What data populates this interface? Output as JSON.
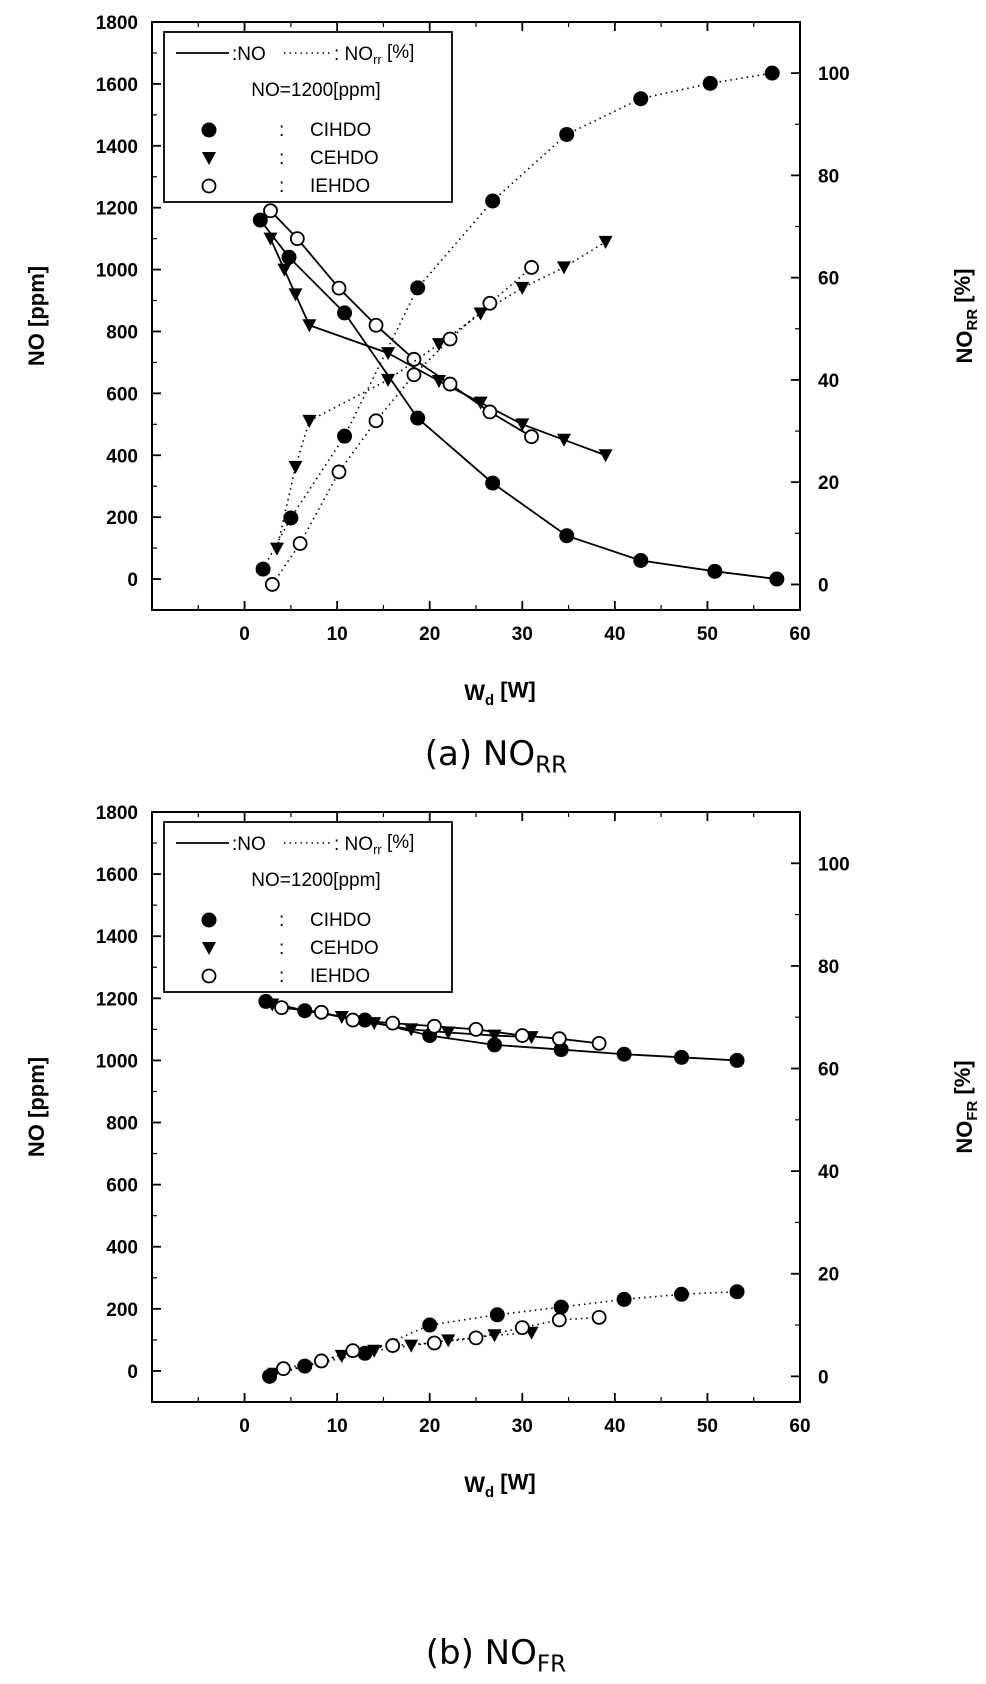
{
  "chart_data": [
    {
      "type": "line",
      "caption": "(a) NO",
      "caption_sub": "RR",
      "xlabel": "W",
      "xlabel_sub": "d",
      "xlabel_unit": "[W]",
      "ylabel": "NO [ppm]",
      "ylabel_right": "NO",
      "ylabel_right_sub": "RR",
      "ylabel_right_unit": "[%]",
      "xlim": [
        -10,
        60
      ],
      "ylim": [
        -100,
        1800
      ],
      "ylim_right": [
        -5,
        110
      ],
      "x_ticks": [
        0,
        10,
        20,
        30,
        40,
        50,
        60
      ],
      "y_ticks": [
        0,
        200,
        400,
        600,
        800,
        1000,
        1200,
        1400,
        1600,
        1800
      ],
      "y_right_ticks": [
        0,
        20,
        40,
        60,
        80,
        100
      ],
      "legend": {
        "line_solid": ":NO",
        "line_dotted": ": NO",
        "line_dotted_sub": "rr",
        "line_dotted_unit": "[%]",
        "condition": "NO=1200[ppm]",
        "entries": [
          {
            "marker": "filled-circle",
            "sep": ":",
            "label": "CIHDO"
          },
          {
            "marker": "filled-triangle",
            "sep": ":",
            "label": "CEHDO"
          },
          {
            "marker": "open-circle",
            "sep": ":",
            "label": "IEHDO"
          }
        ]
      },
      "series": [
        {
          "name": "CIHDO",
          "quantity": "NO",
          "axis": "left",
          "marker": "filled-circle",
          "x": [
            1.7,
            4.8,
            10.8,
            18.7,
            26.8,
            34.8,
            42.8,
            50.8,
            57.5
          ],
          "y": [
            1160,
            1040,
            860,
            520,
            310,
            140,
            60,
            25,
            0
          ]
        },
        {
          "name": "CEHDO",
          "quantity": "NO",
          "axis": "left",
          "marker": "filled-triangle",
          "x": [
            2.8,
            4.3,
            5.5,
            7.0,
            15.5,
            21.0,
            25.5,
            30.0,
            34.5,
            39.0
          ],
          "y": [
            1100,
            1000,
            920,
            820,
            730,
            640,
            570,
            500,
            450,
            400
          ]
        },
        {
          "name": "IEHDO",
          "quantity": "NO",
          "axis": "left",
          "marker": "open-circle",
          "x": [
            2.8,
            5.7,
            10.2,
            14.2,
            18.3,
            22.2,
            26.5,
            31.0
          ],
          "y": [
            1190,
            1100,
            940,
            820,
            710,
            630,
            540,
            460
          ]
        },
        {
          "name": "CIHDO",
          "quantity": "NOrr",
          "axis": "right",
          "marker": "filled-circle",
          "x": [
            2.0,
            5.0,
            10.8,
            18.7,
            26.8,
            34.8,
            42.8,
            50.3,
            57.0
          ],
          "y": [
            3,
            13,
            29,
            58,
            75,
            88,
            95,
            98,
            100
          ]
        },
        {
          "name": "CEHDO",
          "quantity": "NOrr",
          "axis": "right",
          "marker": "filled-triangle",
          "x": [
            3.5,
            5.5,
            7.0,
            15.5,
            21.0,
            25.5,
            30.0,
            34.5,
            39.0
          ],
          "y": [
            7,
            23,
            32,
            40,
            47,
            53,
            58,
            62,
            67
          ]
        },
        {
          "name": "IEHDO",
          "quantity": "NOrr",
          "axis": "right",
          "marker": "open-circle",
          "x": [
            3.0,
            6.0,
            10.2,
            14.2,
            18.3,
            22.2,
            26.5,
            31.0
          ],
          "y": [
            0,
            8,
            22,
            32,
            41,
            48,
            55,
            62
          ]
        }
      ]
    },
    {
      "type": "line",
      "caption": "(b) NO",
      "caption_sub": "FR",
      "xlabel": "W",
      "xlabel_sub": "d",
      "xlabel_unit": "[W]",
      "ylabel": "NO [ppm]",
      "ylabel_right": "NO",
      "ylabel_right_sub": "FR",
      "ylabel_right_unit": "[%]",
      "xlim": [
        -10,
        60
      ],
      "ylim": [
        -100,
        1800
      ],
      "ylim_right": [
        -5,
        110
      ],
      "x_ticks": [
        0,
        10,
        20,
        30,
        40,
        50,
        60
      ],
      "y_ticks": [
        0,
        200,
        400,
        600,
        800,
        1000,
        1200,
        1400,
        1600,
        1800
      ],
      "y_right_ticks": [
        0,
        20,
        40,
        60,
        80,
        100
      ],
      "legend": {
        "line_solid": ":NO",
        "line_dotted": ": NO",
        "line_dotted_sub": "rr",
        "line_dotted_unit": "[%]",
        "condition": "NO=1200[ppm]",
        "entries": [
          {
            "marker": "filled-circle",
            "sep": ":",
            "label": "CIHDO"
          },
          {
            "marker": "filled-triangle",
            "sep": ":",
            "label": "CEHDO"
          },
          {
            "marker": "open-circle",
            "sep": ":",
            "label": "IEHDO"
          }
        ]
      },
      "series": [
        {
          "name": "CIHDO",
          "quantity": "NO",
          "axis": "left",
          "marker": "filled-circle",
          "x": [
            2.3,
            6.5,
            13.0,
            20.0,
            27.0,
            34.2,
            41.0,
            47.2,
            53.2
          ],
          "y": [
            1190,
            1160,
            1130,
            1080,
            1050,
            1035,
            1020,
            1010,
            1000
          ]
        },
        {
          "name": "CEHDO",
          "quantity": "NO",
          "axis": "left",
          "marker": "filled-triangle",
          "x": [
            3.0,
            10.5,
            14.0,
            18.0,
            22.0,
            27.0,
            31.0
          ],
          "y": [
            1180,
            1140,
            1120,
            1100,
            1090,
            1080,
            1075
          ]
        },
        {
          "name": "IEHDO",
          "quantity": "NO",
          "axis": "left",
          "marker": "open-circle",
          "x": [
            4.0,
            8.3,
            11.7,
            16.0,
            20.5,
            25.0,
            30.0,
            34.0,
            38.3
          ],
          "y": [
            1170,
            1155,
            1130,
            1120,
            1110,
            1100,
            1080,
            1070,
            1055
          ]
        },
        {
          "name": "CIHDO",
          "quantity": "NOfr",
          "axis": "right",
          "marker": "filled-circle",
          "x": [
            2.7,
            6.5,
            13.0,
            20.0,
            27.3,
            34.2,
            41.0,
            47.2,
            53.2
          ],
          "y": [
            0,
            2,
            4.5,
            10,
            12,
            13.5,
            15,
            16,
            16.5
          ]
        },
        {
          "name": "CEHDO",
          "quantity": "NOfr",
          "axis": "right",
          "marker": "filled-triangle",
          "x": [
            3.2,
            10.5,
            14.0,
            18.0,
            22.0,
            27.0,
            31.0
          ],
          "y": [
            0.5,
            4,
            5,
            6,
            7,
            8,
            8.5
          ]
        },
        {
          "name": "IEHDO",
          "quantity": "NOfr",
          "axis": "right",
          "marker": "open-circle",
          "x": [
            4.2,
            8.3,
            11.7,
            16.0,
            20.5,
            25.0,
            30.0,
            34.0,
            38.3
          ],
          "y": [
            1.5,
            3,
            5,
            6,
            6.5,
            7.5,
            9.5,
            11,
            11.5
          ]
        }
      ]
    }
  ]
}
